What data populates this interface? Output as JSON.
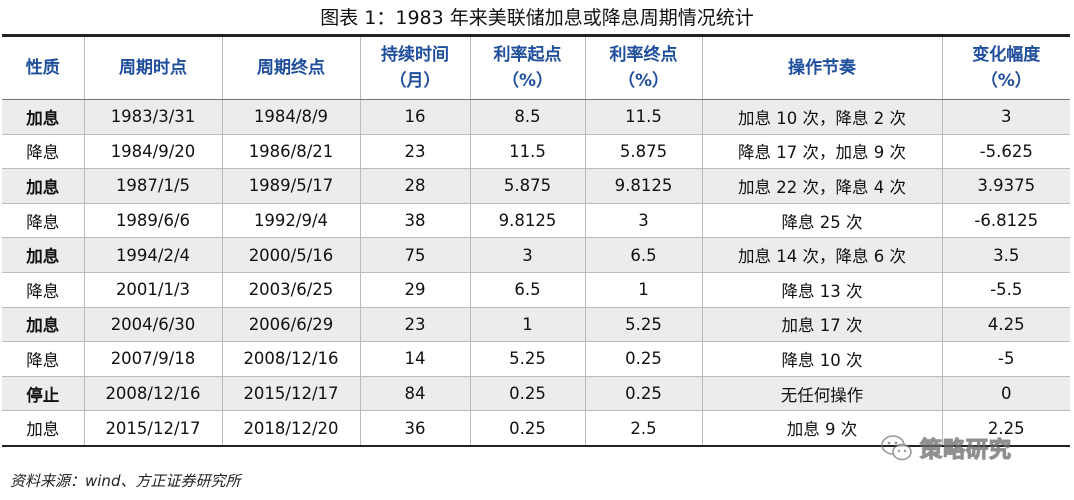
{
  "title": "图表 1：1983 年来美联储加息或降息周期情况统计",
  "headers": [
    {
      "line1": "性质",
      "line2": ""
    },
    {
      "line1": "周期时点",
      "line2": ""
    },
    {
      "line1": "周期终点",
      "line2": ""
    },
    {
      "line1": "持续时间",
      "line2": "（月）"
    },
    {
      "line1": "利率起点",
      "line2": "（%）"
    },
    {
      "line1": "利率终点",
      "line2": "（%）"
    },
    {
      "line1": "操作节奏",
      "line2": ""
    },
    {
      "line1": "变化幅度",
      "line2": "（%）"
    }
  ],
  "rows": [
    [
      "加息",
      "1983/3/31",
      "1984/8/9",
      "16",
      "8.5",
      "11.5",
      "加息 10 次，降息 2 次",
      "3"
    ],
    [
      "降息",
      "1984/9/20",
      "1986/8/21",
      "23",
      "11.5",
      "5.875",
      "降息 17 次，加息 9 次",
      "-5.625"
    ],
    [
      "加息",
      "1987/1/5",
      "1989/5/17",
      "28",
      "5.875",
      "9.8125",
      "加息 22 次，降息 4 次",
      "3.9375"
    ],
    [
      "降息",
      "1989/6/6",
      "1992/9/4",
      "38",
      "9.8125",
      "3",
      "降息 25 次",
      "-6.8125"
    ],
    [
      "加息",
      "1994/2/4",
      "2000/5/16",
      "75",
      "3",
      "6.5",
      "加息 14 次，降息 6 次",
      "3.5"
    ],
    [
      "降息",
      "2001/1/3",
      "2003/6/25",
      "29",
      "6.5",
      "1",
      "降息 13 次",
      "-5.5"
    ],
    [
      "加息",
      "2004/6/30",
      "2006/6/29",
      "23",
      "1",
      "5.25",
      "加息 17 次",
      "4.25"
    ],
    [
      "降息",
      "2007/9/18",
      "2008/12/16",
      "14",
      "5.25",
      "0.25",
      "降息 10 次",
      "-5"
    ],
    [
      "停止",
      "2008/12/16",
      "2015/12/17",
      "84",
      "0.25",
      "0.25",
      "无任何操作",
      "0"
    ],
    [
      "加息",
      "2015/12/17",
      "2018/12/20",
      "36",
      "0.25",
      "2.5",
      "加息 9 次",
      "2.25"
    ]
  ],
  "source": "资料来源：wind、方正证券研究所",
  "watermark": {
    "text": "策略研究",
    "icon": "wechat-icon"
  },
  "colors": {
    "header_text": "#1f4e9c",
    "stripe": "#ececec"
  }
}
